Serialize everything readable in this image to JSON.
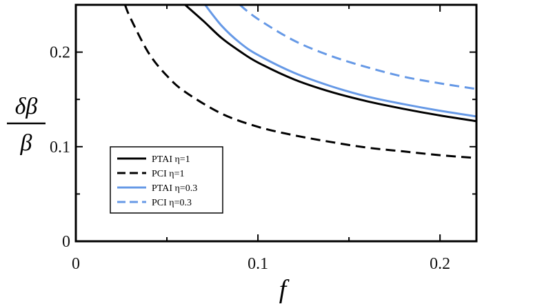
{
  "chart_data": {
    "type": "line",
    "xlabel": "f",
    "ylabel_numerator": "δβ",
    "ylabel_denominator": "β",
    "xlim": [
      0,
      0.22
    ],
    "ylim": [
      0,
      0.25
    ],
    "xticks": [
      0,
      0.1,
      0.2
    ],
    "xtick_labels": [
      "0",
      "0.1",
      "0.2"
    ],
    "yticks": [
      0,
      0.1,
      0.2
    ],
    "ytick_labels": [
      "0",
      "0.1",
      "0.2"
    ],
    "grid": false,
    "legend_position": "lower-left",
    "series": [
      {
        "name": "PTAI η=1",
        "color": "#000000",
        "dash": "solid",
        "x": [
          0.06,
          0.07,
          0.08,
          0.09,
          0.1,
          0.12,
          0.14,
          0.16,
          0.18,
          0.2,
          0.22
        ],
        "y": [
          0.25,
          0.233,
          0.215,
          0.201,
          0.189,
          0.171,
          0.158,
          0.148,
          0.14,
          0.133,
          0.127
        ]
      },
      {
        "name": "PCI η=1",
        "color": "#000000",
        "dash": "dashed",
        "x": [
          0.027,
          0.03,
          0.04,
          0.05,
          0.06,
          0.08,
          0.1,
          0.12,
          0.14,
          0.16,
          0.18,
          0.2,
          0.22
        ],
        "y": [
          0.25,
          0.236,
          0.199,
          0.175,
          0.158,
          0.135,
          0.121,
          0.112,
          0.105,
          0.099,
          0.095,
          0.091,
          0.088
        ]
      },
      {
        "name": "PTAI η=0.3",
        "color": "#6699e6",
        "dash": "solid",
        "x": [
          0.071,
          0.08,
          0.09,
          0.1,
          0.12,
          0.14,
          0.16,
          0.18,
          0.2,
          0.22
        ],
        "y": [
          0.25,
          0.228,
          0.21,
          0.197,
          0.178,
          0.164,
          0.153,
          0.145,
          0.138,
          0.132
        ]
      },
      {
        "name": "PCI η=0.3",
        "color": "#6699e6",
        "dash": "dashed",
        "x": [
          0.09,
          0.1,
          0.12,
          0.14,
          0.16,
          0.18,
          0.2,
          0.22
        ],
        "y": [
          0.25,
          0.235,
          0.212,
          0.196,
          0.184,
          0.174,
          0.167,
          0.161
        ]
      }
    ]
  }
}
